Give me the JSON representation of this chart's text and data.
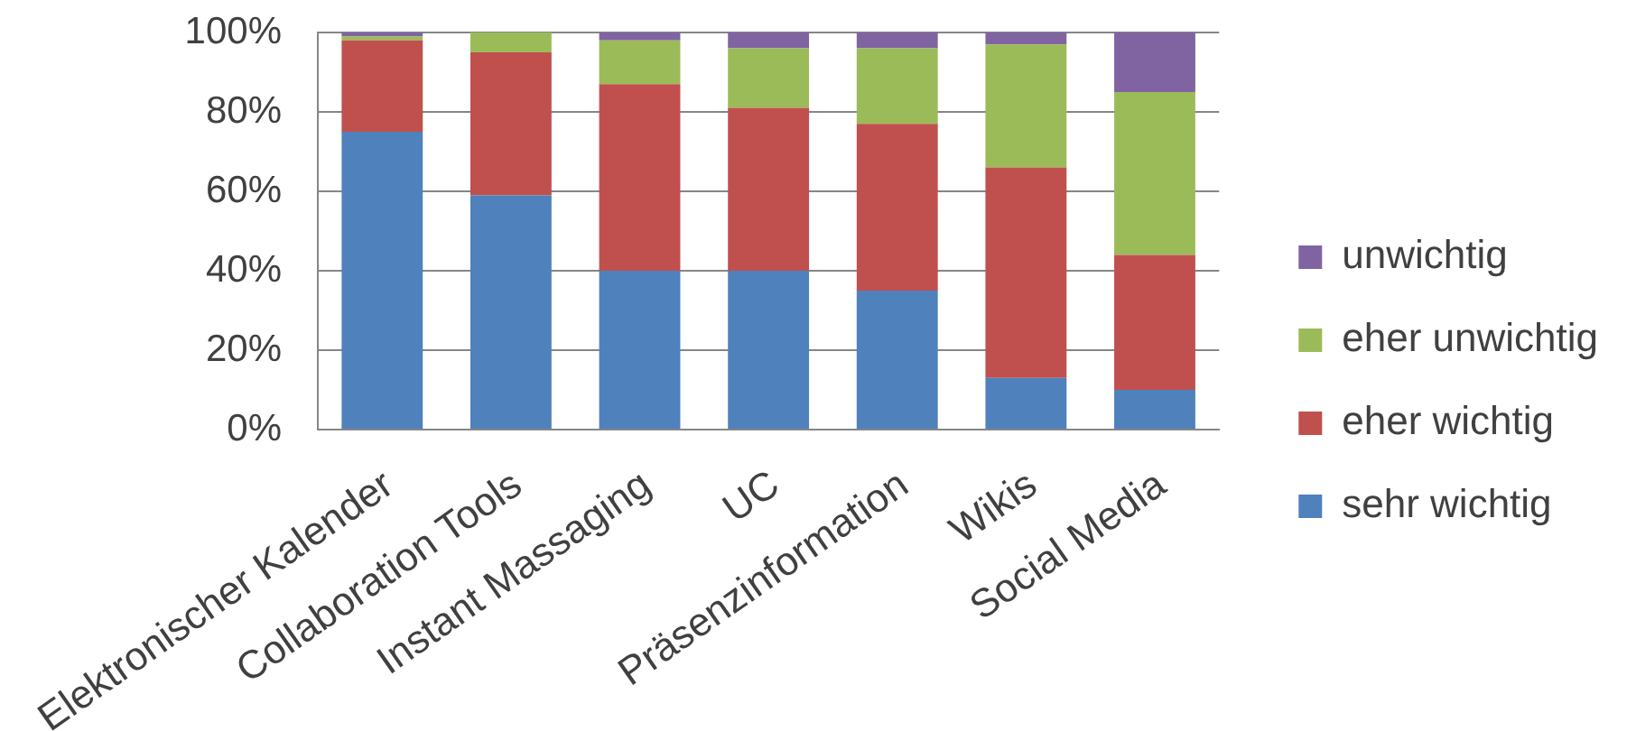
{
  "chart_data": {
    "type": "bar",
    "stacked": true,
    "categories": [
      "Elektronischer Kalender",
      "Collaboration Tools",
      "Instant Massaging",
      "UC",
      "Präsenzinformation",
      "Wikis",
      "Social Media"
    ],
    "series": [
      {
        "name": "sehr wichtig",
        "color": "#4f81bd",
        "values": [
          75,
          59,
          40,
          40,
          35,
          13,
          10
        ]
      },
      {
        "name": "eher wichtig",
        "color": "#c0504d",
        "values": [
          23,
          36,
          47,
          41,
          42,
          53,
          34
        ]
      },
      {
        "name": "eher unwichtig",
        "color": "#9bbb59",
        "values": [
          1,
          5,
          11,
          15,
          19,
          31,
          41
        ]
      },
      {
        "name": "unwichtig",
        "color": "#8064a2",
        "values": [
          1,
          0,
          2,
          4,
          4,
          3,
          15
        ]
      }
    ],
    "ylim": [
      0,
      100
    ],
    "yticks": [
      {
        "value": 0,
        "label": "0%"
      },
      {
        "value": 20,
        "label": "20%"
      },
      {
        "value": 40,
        "label": "40%"
      },
      {
        "value": 60,
        "label": "60%"
      },
      {
        "value": 80,
        "label": "80%"
      },
      {
        "value": 100,
        "label": "100%"
      }
    ],
    "grid": "y",
    "legend": "right"
  }
}
